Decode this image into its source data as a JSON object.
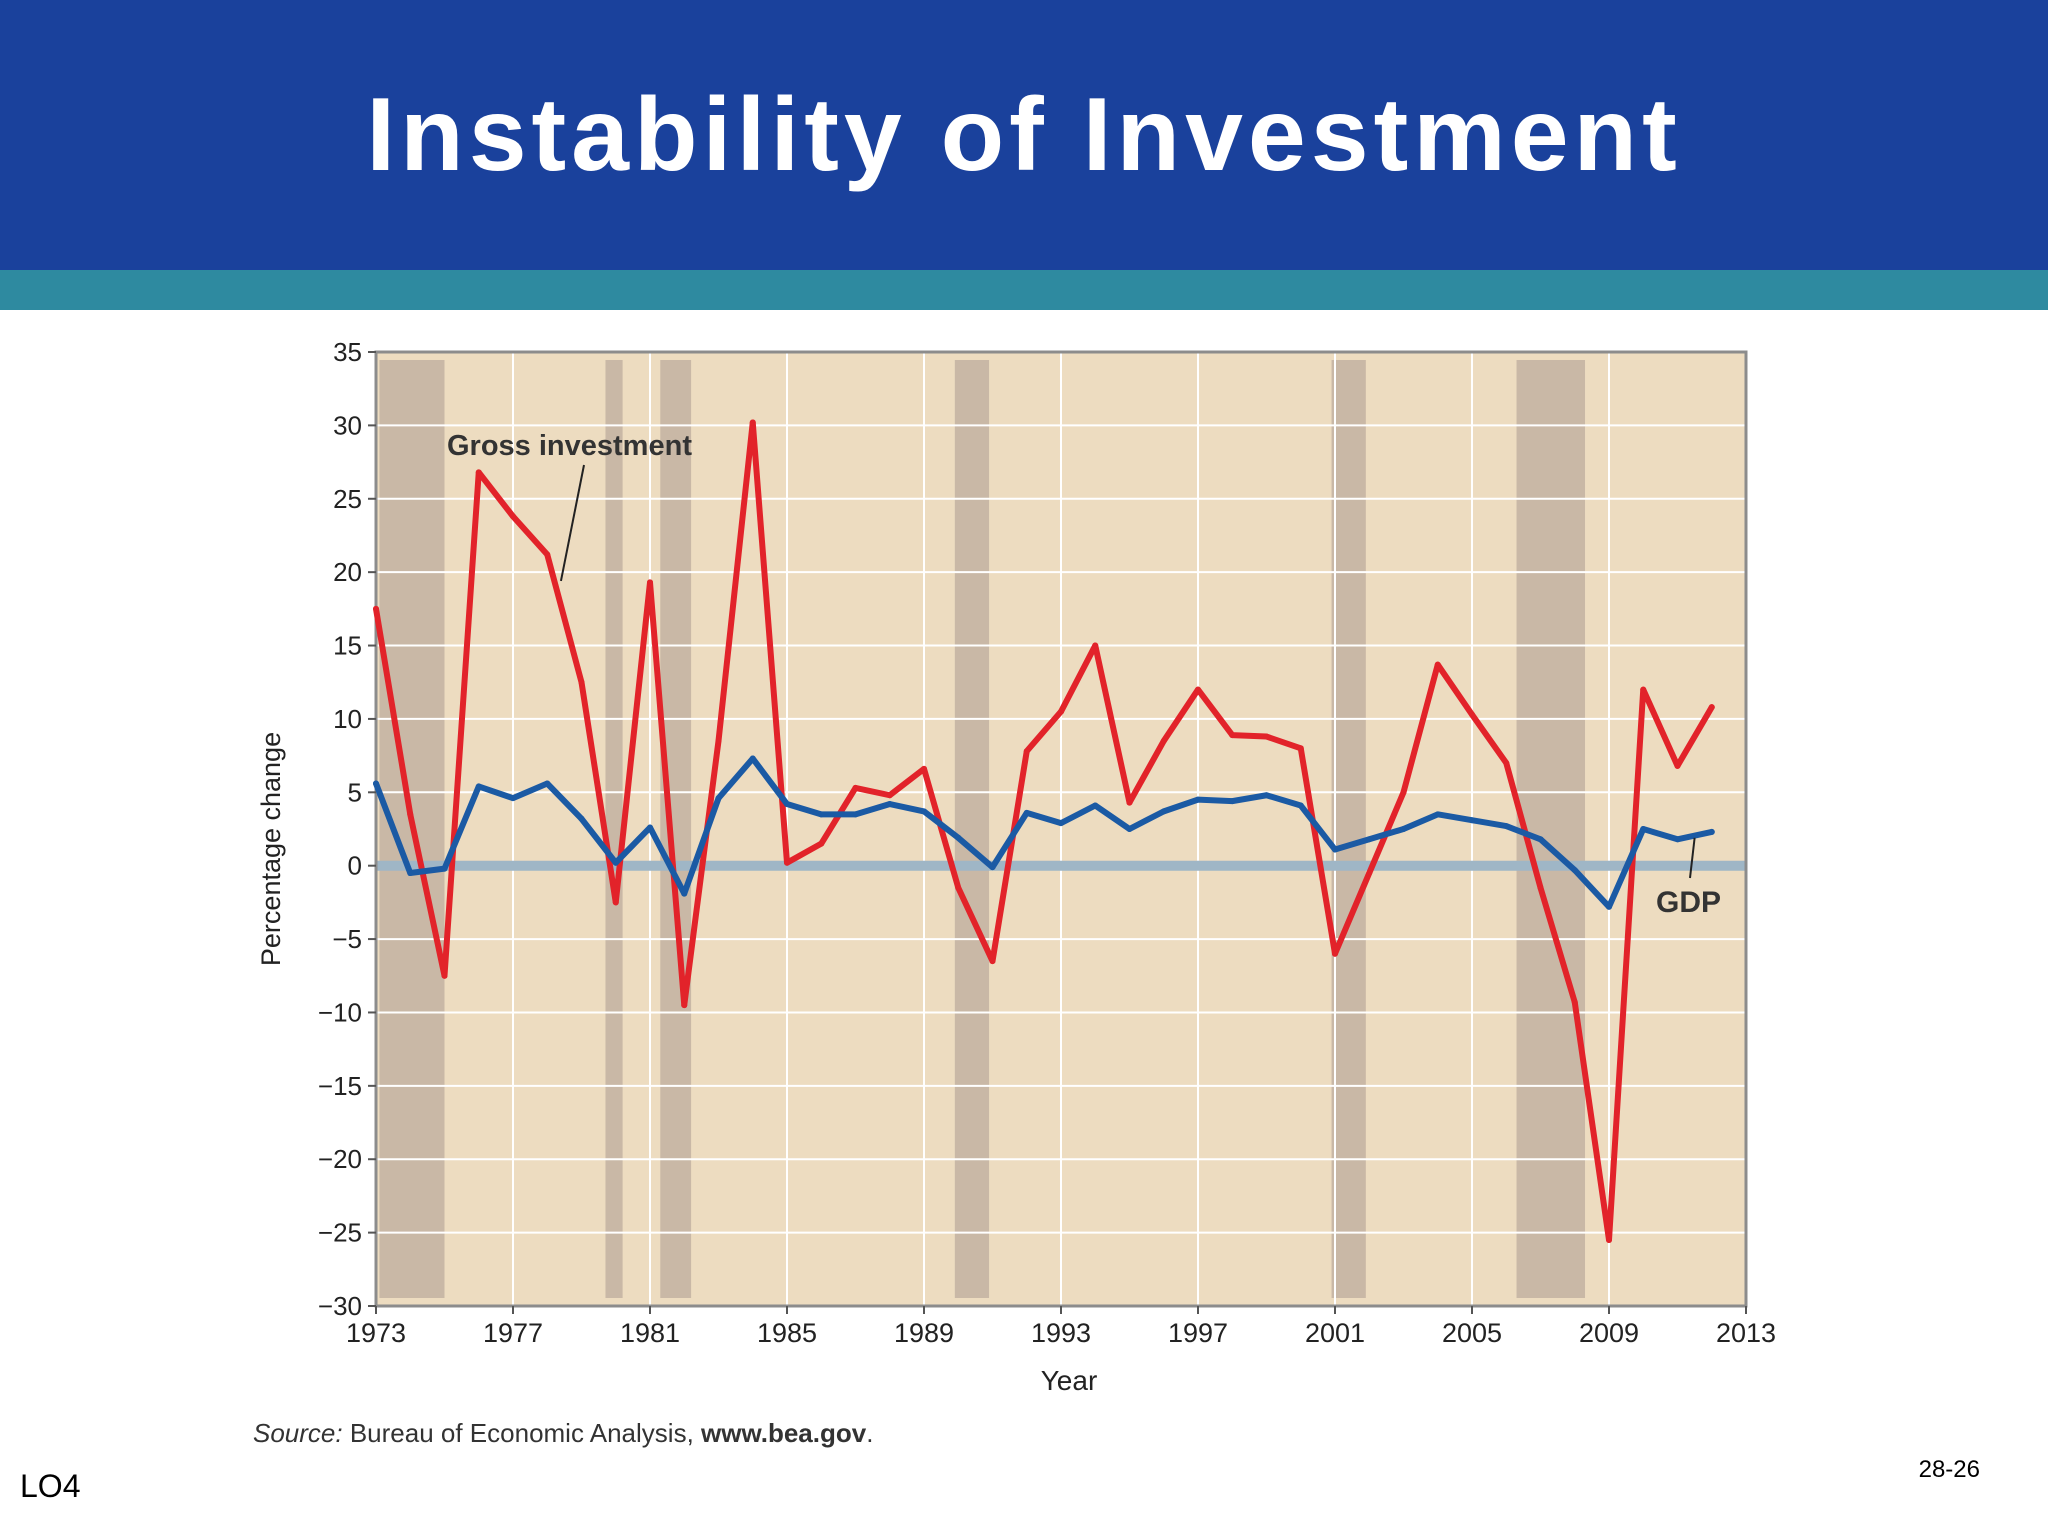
{
  "slide": {
    "title": "Instability of Investment",
    "source_label": "Source:",
    "source_text": " Bureau of Economic Analysis, ",
    "source_url": "www.bea.gov",
    "source_end": ".",
    "footer_left": "LO4",
    "footer_right": "28-26"
  },
  "colors": {
    "title_bg": "#1a419c",
    "accent": "#2e8aa0",
    "plot_bg": "#eddcc0",
    "recession": "#c9b8a6",
    "gross": "#e2232a",
    "gdp": "#1b5aa4",
    "zero_line": "#9fb6c6",
    "grid": "#ffffff"
  },
  "chart_data": {
    "type": "line",
    "title": "",
    "xlabel": "Year",
    "ylabel": "Percentage change",
    "xlim": [
      1973,
      2013
    ],
    "ylim": [
      -30,
      35
    ],
    "xticks": [
      "1973",
      "1977",
      "1981",
      "1985",
      "1989",
      "1993",
      "1997",
      "2001",
      "2005",
      "2009",
      "2013"
    ],
    "yticks": [
      35,
      30,
      25,
      20,
      15,
      10,
      5,
      0,
      -5,
      -10,
      -15,
      -20,
      -25,
      -30
    ],
    "grid": true,
    "recession_periods": [
      [
        1973.1,
        1975.0
      ],
      [
        1979.7,
        1980.2
      ],
      [
        1981.3,
        1982.2
      ],
      [
        1989.9,
        1990.9
      ],
      [
        2000.9,
        2001.9
      ],
      [
        2006.3,
        2008.3
      ]
    ],
    "x": [
      1973,
      1974,
      1975,
      1976,
      1977,
      1978,
      1979,
      1980,
      1981,
      1982,
      1983,
      1984,
      1985,
      1986,
      1987,
      1988,
      1989,
      1990,
      1991,
      1992,
      1993,
      1994,
      1995,
      1996,
      1997,
      1998,
      1999,
      2000,
      2001,
      2002,
      2003,
      2004,
      2005,
      2006,
      2007,
      2008,
      2009,
      2010,
      2011,
      2012
    ],
    "series": [
      {
        "name": "Gross investment",
        "color": "#e2232a",
        "values": [
          17.5,
          3.5,
          -7.5,
          26.8,
          23.8,
          21.2,
          12.5,
          -2.5,
          19.3,
          -9.5,
          8.5,
          30.2,
          0.2,
          1.5,
          5.3,
          4.8,
          6.6,
          -1.5,
          -6.5,
          7.8,
          10.5,
          15.0,
          4.3,
          8.5,
          12.0,
          8.9,
          8.8,
          8.0,
          -6.0,
          -0.5,
          5.0,
          13.7,
          10.3,
          7.0,
          -1.5,
          -9.3,
          -25.5,
          12.0,
          6.8,
          10.8
        ]
      },
      {
        "name": "GDP",
        "color": "#1b5aa4",
        "values": [
          5.6,
          -0.5,
          -0.2,
          5.4,
          4.6,
          5.6,
          3.2,
          0.2,
          2.6,
          -1.9,
          4.6,
          7.3,
          4.2,
          3.5,
          3.5,
          4.2,
          3.7,
          1.9,
          -0.1,
          3.6,
          2.9,
          4.1,
          2.5,
          3.7,
          4.5,
          4.4,
          4.8,
          4.1,
          1.1,
          1.8,
          2.5,
          3.5,
          3.1,
          2.7,
          1.8,
          -0.3,
          -2.8,
          2.5,
          1.8,
          2.3
        ]
      }
    ],
    "annotations": [
      {
        "text": "Gross investment",
        "target_series": "Gross investment"
      },
      {
        "text": "GDP",
        "target_series": "GDP"
      }
    ]
  }
}
